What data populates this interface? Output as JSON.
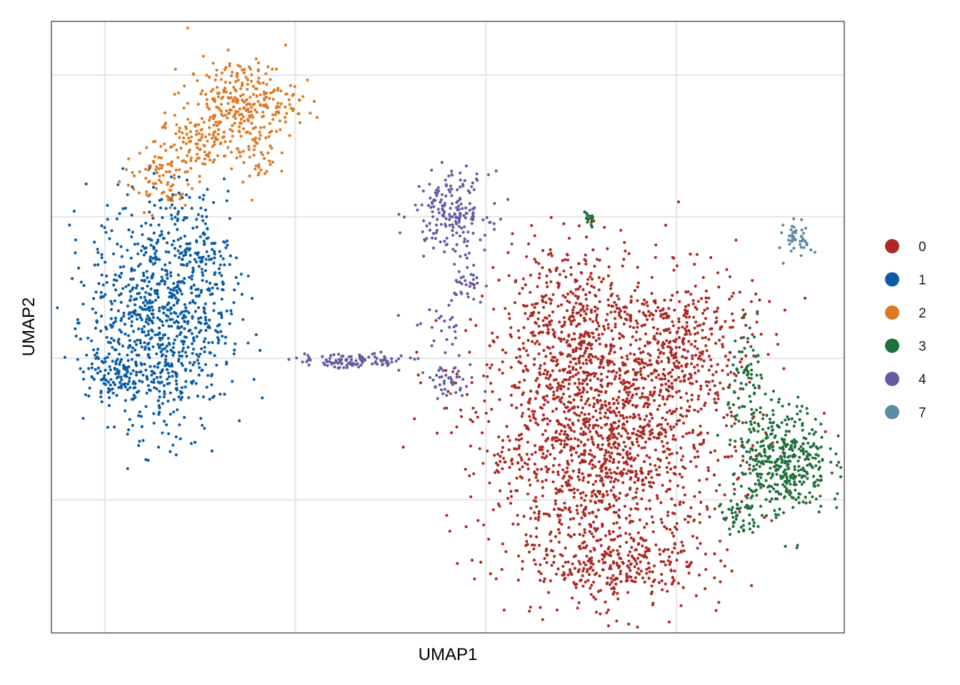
{
  "chart_data": {
    "type": "scatter",
    "title": "",
    "xlabel": "UMAP1",
    "ylabel": "UMAP2",
    "xlim": [
      -14.4,
      6.4
    ],
    "ylim": [
      -9.7,
      11.9
    ],
    "x_gridlines": [
      -13,
      -8,
      -3,
      2
    ],
    "y_gridlines": [
      10,
      5,
      0,
      -5
    ],
    "tick_labels_shown": false,
    "grid": true,
    "legend": "right",
    "series": [
      {
        "name": "0",
        "color": "#AC2A24",
        "clusters": [
          {
            "cx": 0.1,
            "cy": -2.8,
            "sx": 1.8,
            "sy": 2.8,
            "n": 1700
          },
          {
            "cx": -0.9,
            "cy": 1.5,
            "sx": 0.9,
            "sy": 1.5,
            "n": 280
          },
          {
            "cx": 2.1,
            "cy": 0.5,
            "sx": 1.1,
            "sy": 1.5,
            "n": 320
          },
          {
            "cx": 0.4,
            "cy": -7.4,
            "sx": 1.3,
            "sy": 0.6,
            "n": 220
          }
        ]
      },
      {
        "name": "1",
        "color": "#0B5CA3",
        "clusters": [
          {
            "cx": -11.6,
            "cy": 1.4,
            "sx": 1.0,
            "sy": 2.3,
            "n": 900
          },
          {
            "cx": -12.7,
            "cy": -0.6,
            "sx": 0.4,
            "sy": 0.5,
            "n": 70
          },
          {
            "cx": -10.2,
            "cy": 3.2,
            "sx": 0.5,
            "sy": 1.5,
            "n": 90
          }
        ]
      },
      {
        "name": "2",
        "color": "#DC7A25",
        "clusters": [
          {
            "cx": -9.4,
            "cy": 9.1,
            "sx": 0.8,
            "sy": 0.8,
            "n": 280
          },
          {
            "cx": -10.6,
            "cy": 7.6,
            "sx": 0.6,
            "sy": 0.6,
            "n": 110
          },
          {
            "cx": -11.6,
            "cy": 6.3,
            "sx": 0.5,
            "sy": 0.6,
            "n": 80
          },
          {
            "cx": -9.0,
            "cy": 7.2,
            "sx": 0.3,
            "sy": 0.8,
            "n": 40
          }
        ]
      },
      {
        "name": "3",
        "color": "#1E703A",
        "clusters": [
          {
            "cx": 4.8,
            "cy": -3.6,
            "sx": 0.65,
            "sy": 1.1,
            "n": 420
          },
          {
            "cx": 3.9,
            "cy": -0.8,
            "sx": 0.3,
            "sy": 1.0,
            "n": 70
          },
          {
            "cx": 3.6,
            "cy": -5.6,
            "sx": 0.3,
            "sy": 0.5,
            "n": 45
          },
          {
            "cx": -0.3,
            "cy": 4.9,
            "sx": 0.1,
            "sy": 0.15,
            "n": 20
          }
        ]
      },
      {
        "name": "4",
        "color": "#655CA2",
        "clusters": [
          {
            "cx": -3.9,
            "cy": 5.2,
            "sx": 0.55,
            "sy": 0.75,
            "n": 180
          },
          {
            "cx": -3.5,
            "cy": 2.8,
            "sx": 0.25,
            "sy": 0.6,
            "n": 35
          },
          {
            "cx": -4.2,
            "cy": 1.0,
            "sx": 0.5,
            "sy": 0.8,
            "n": 30
          },
          {
            "cx": -4.0,
            "cy": -0.9,
            "sx": 0.4,
            "sy": 0.4,
            "n": 40
          },
          {
            "cx": -6.5,
            "cy": -0.1,
            "sx": 0.8,
            "sy": 0.15,
            "n": 110
          }
        ]
      },
      {
        "name": "7",
        "color": "#5E8CA2",
        "clusters": [
          {
            "cx": 5.2,
            "cy": 4.2,
            "sx": 0.2,
            "sy": 0.35,
            "n": 45
          }
        ]
      }
    ]
  }
}
